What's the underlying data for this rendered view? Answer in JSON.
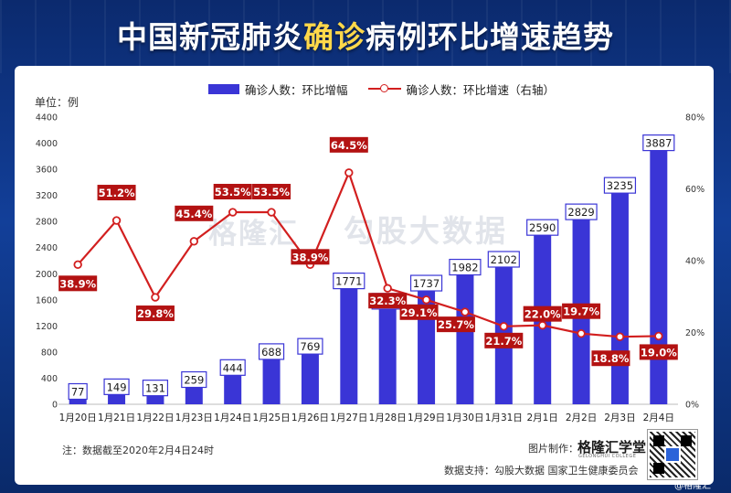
{
  "title_prefix": "中国新冠肺炎",
  "title_highlight": "确诊",
  "title_suffix": "病例环比增速趋势",
  "colors": {
    "bar": "#3a35d6",
    "line": "#d21f1f",
    "label_box": "#b31212",
    "background": "#123f99"
  },
  "legend": {
    "bar_label": "确诊人数：环比增幅",
    "line_label": "确诊人数：环比增速（右轴）"
  },
  "unit_label": "单位：例",
  "watermark": {
    "logo_text": "格隆汇",
    "text": "勾股大数据"
  },
  "footer": {
    "note": "注：数据截至2020年2月4日24时",
    "maker_label": "图片制作：",
    "brand": "格隆汇学堂",
    "brand_sub": "GELONGHUI COLLEGE",
    "source": "数据支持：勾股大数据 国家卫生健康委员会",
    "corner": "@格隆汇"
  },
  "chart_data": {
    "type": "bar",
    "categories": [
      "1月20日",
      "1月21日",
      "1月22日",
      "1月23日",
      "1月24日",
      "1月25日",
      "1月26日",
      "1月27日",
      "1月28日",
      "1月29日",
      "1月30日",
      "1月31日",
      "2月1日",
      "2月2日",
      "2月3日",
      "2月4日"
    ],
    "series": [
      {
        "name": "确诊人数：环比增幅",
        "type": "bar",
        "axis": "left",
        "values": [
          77,
          149,
          131,
          259,
          444,
          688,
          769,
          1771,
          1459,
          1737,
          1982,
          2102,
          2590,
          2829,
          3235,
          3887
        ]
      },
      {
        "name": "确诊人数：环比增速（右轴）",
        "type": "line",
        "axis": "right",
        "values": [
          38.9,
          51.2,
          29.8,
          45.4,
          53.5,
          53.5,
          38.9,
          64.5,
          32.3,
          29.1,
          25.7,
          21.7,
          22.0,
          19.7,
          18.8,
          19.0
        ],
        "labels": [
          "38.9%",
          "51.2%",
          "29.8%",
          "45.4%",
          "53.5%",
          "53.5%",
          "38.9%",
          "64.5%",
          "32.3%",
          "29.1%",
          "25.7%",
          "21.7%",
          "22.0%",
          "19.7%",
          "18.8%",
          "19.0%"
        ]
      }
    ],
    "ylim_left": [
      0,
      4400
    ],
    "yticks_left": [
      0,
      400,
      800,
      1200,
      1600,
      2000,
      2400,
      2800,
      3200,
      3600,
      4000,
      4400
    ],
    "ylim_right": [
      0,
      80
    ],
    "yticks_right": [
      "0%",
      "20%",
      "40%",
      "60%",
      "80%"
    ],
    "grid": false
  }
}
